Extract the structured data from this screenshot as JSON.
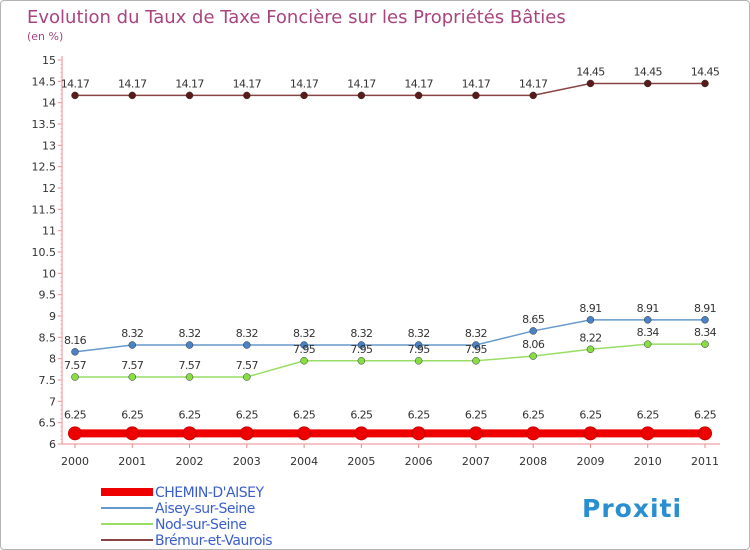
{
  "chart_data": {
    "type": "line",
    "title": "Evolution du Taux de Taxe Foncière sur les Propriétés Bâties",
    "ylabel": "(en %)",
    "xlabel": "",
    "ylim": [
      6,
      15
    ],
    "y_ticks": [
      "6",
      "6.5",
      "7",
      "7.5",
      "8",
      "8.5",
      "9",
      "9.5",
      "10",
      "10.5",
      "11",
      "11.5",
      "12",
      "12.5",
      "13",
      "13.5",
      "14",
      "14.5",
      "15"
    ],
    "categories": [
      "2000",
      "2001",
      "2002",
      "2003",
      "2004",
      "2005",
      "2006",
      "2007",
      "2008",
      "2009",
      "2010",
      "2011"
    ],
    "series": [
      {
        "name": "CHEMIN-D'AISEY",
        "color": "#ee0000",
        "values": [
          6.25,
          6.25,
          6.25,
          6.25,
          6.25,
          6.25,
          6.25,
          6.25,
          6.25,
          6.25,
          6.25,
          6.25
        ],
        "labels": [
          "6.25",
          "6.25",
          "6.25",
          "6.25",
          "6.25",
          "6.25",
          "6.25",
          "6.25",
          "6.25",
          "6.25",
          "6.25",
          "6.25"
        ]
      },
      {
        "name": "Aisey-sur-Seine",
        "color": "#6699cc",
        "values": [
          8.16,
          8.32,
          8.32,
          8.32,
          8.32,
          8.32,
          8.32,
          8.32,
          8.65,
          8.91,
          8.91,
          8.91
        ],
        "labels": [
          "8.16",
          "8.32",
          "8.32",
          "8.32",
          "8.32",
          "8.32",
          "8.32",
          "8.32",
          "8.65",
          "8.91",
          "8.91",
          "8.91"
        ]
      },
      {
        "name": "Nod-sur-Seine",
        "color": "#99dd66",
        "values": [
          7.57,
          7.57,
          7.57,
          7.57,
          7.95,
          7.95,
          7.95,
          7.95,
          8.06,
          8.22,
          8.34,
          8.34
        ],
        "labels": [
          "7.57",
          "7.57",
          "7.57",
          "7.57",
          "7.95",
          "7.95",
          "7.95",
          "7.95",
          "8.06",
          "8.22",
          "8.34",
          "8.34"
        ]
      },
      {
        "name": "Brémur-et-Vaurois",
        "color": "#884444",
        "values": [
          14.17,
          14.17,
          14.17,
          14.17,
          14.17,
          14.17,
          14.17,
          14.17,
          14.17,
          14.45,
          14.45,
          14.45
        ],
        "labels": [
          "14.17",
          "14.17",
          "14.17",
          "14.17",
          "14.17",
          "14.17",
          "14.17",
          "14.17",
          "14.17",
          "14.45",
          "14.45",
          "14.45"
        ]
      }
    ],
    "legend_position": "bottom-left",
    "grid": false
  },
  "branding": {
    "logo_text": "Proxiti"
  }
}
